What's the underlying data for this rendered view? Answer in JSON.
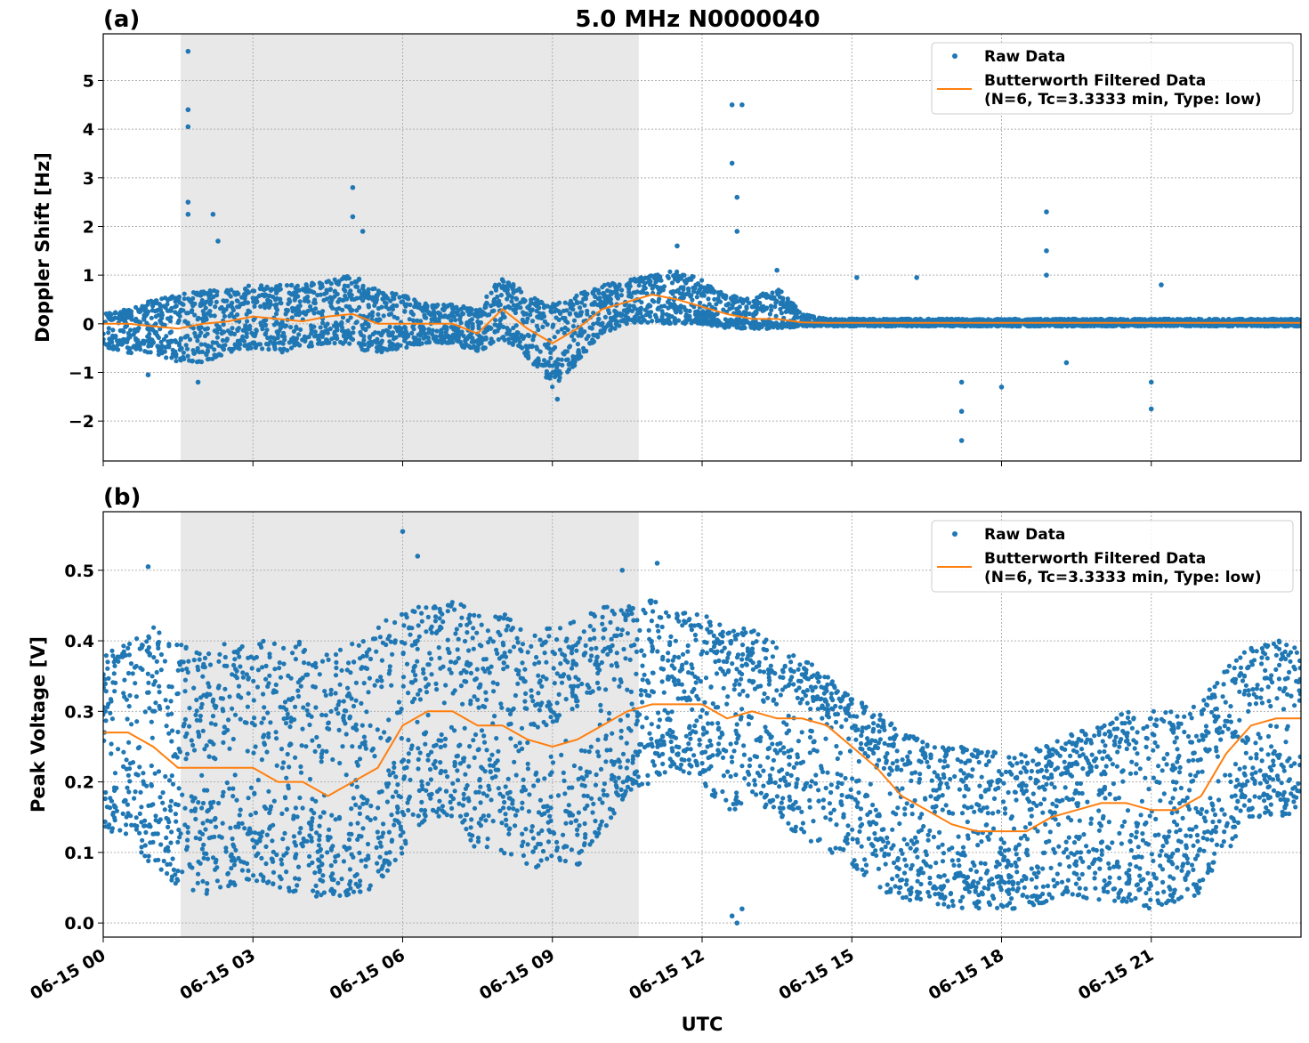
{
  "chart_data": [
    {
      "panel_label": "(a)",
      "title": "5.0 MHz N0000040",
      "type": "scatter",
      "xlabel": "",
      "ylabel": "Doppler Shift [Hz]",
      "xlim_hours": [
        0,
        24
      ],
      "ylim": [
        -2.82,
        5.96
      ],
      "yticks": [
        "−2",
        "−1",
        "0",
        "1",
        "2",
        "3",
        "4",
        "5"
      ],
      "ytick_values": [
        -2,
        -1,
        0,
        1,
        2,
        3,
        4,
        5
      ],
      "grid": true,
      "shaded_region_utc": [
        "01:33",
        "10:44"
      ],
      "shaded_region_hours": [
        1.55,
        10.73
      ],
      "legend": {
        "placement": "top-right",
        "entries": [
          "Raw Data",
          "Butterworth Filtered Data",
          "(N=6, Tc=3.3333 min, Type: low)"
        ]
      },
      "colors": {
        "raw": "#1f77b4",
        "filtered": "#ff7f0e",
        "shade": "#e8e8e8"
      },
      "bins_hours": [
        0,
        0.5,
        1,
        1.5,
        2,
        2.5,
        3,
        3.5,
        4,
        4.5,
        5,
        5.5,
        6,
        6.5,
        7,
        7.5,
        8,
        8.5,
        9,
        9.5,
        10,
        10.5,
        11,
        11.5,
        12,
        12.5,
        13,
        13.5,
        14,
        14.5,
        15,
        15.5,
        16,
        16.5,
        17,
        17.5,
        18,
        18.5,
        19,
        19.5,
        20,
        20.5,
        21,
        21.5,
        22,
        22.5,
        23,
        23.5,
        24
      ],
      "filtered": [
        0,
        0,
        -0.05,
        -0.1,
        0,
        0.05,
        0.15,
        0.1,
        0.05,
        0.15,
        0.2,
        0,
        0,
        0,
        0,
        -0.2,
        0.3,
        -0.1,
        -0.4,
        -0.1,
        0.3,
        0.45,
        0.6,
        0.5,
        0.35,
        0.2,
        0.1,
        0.1,
        0.03,
        0.02,
        0.02,
        0.02,
        0.02,
        0.02,
        0.02,
        0.02,
        0.02,
        0.02,
        0.02,
        0.02,
        0.02,
        0.02,
        0.02,
        0.02,
        0.02,
        0.02,
        0.02,
        0.02,
        0.02
      ],
      "raw_low": [
        -0.5,
        -0.6,
        -0.6,
        -0.8,
        -0.8,
        -0.6,
        -0.5,
        -0.6,
        -0.5,
        -0.4,
        -0.5,
        -0.6,
        -0.5,
        -0.4,
        -0.4,
        -0.6,
        -0.3,
        -0.7,
        -1.3,
        -0.8,
        -0.2,
        0,
        0,
        0,
        0,
        -0.1,
        -0.1,
        -0.1,
        -0.05,
        -0.05,
        -0.05,
        -0.05,
        -0.05,
        -0.05,
        -0.05,
        -0.05,
        -0.05,
        -0.05,
        -0.05,
        -0.05,
        -0.05,
        -0.05,
        -0.05,
        -0.05,
        -0.05,
        -0.05,
        -0.05,
        -0.05,
        -0.05
      ],
      "raw_high": [
        0.2,
        0.3,
        0.5,
        0.6,
        0.7,
        0.7,
        0.8,
        0.8,
        0.8,
        0.9,
        1.0,
        0.7,
        0.6,
        0.4,
        0.4,
        0.3,
        1.0,
        0.6,
        0.4,
        0.6,
        0.8,
        0.9,
        1.0,
        1.1,
        0.9,
        0.6,
        0.5,
        0.8,
        0.2,
        0.1,
        0.1,
        0.1,
        0.1,
        0.1,
        0.1,
        0.1,
        0.1,
        0.1,
        0.1,
        0.1,
        0.1,
        0.1,
        0.1,
        0.1,
        0.1,
        0.1,
        0.1,
        0.1,
        0.1
      ],
      "raw_outliers": [
        [
          1.7,
          5.6
        ],
        [
          1.7,
          4.4
        ],
        [
          1.7,
          4.05
        ],
        [
          1.7,
          2.5
        ],
        [
          1.7,
          2.25
        ],
        [
          2.2,
          2.25
        ],
        [
          2.3,
          1.7
        ],
        [
          5.0,
          2.8
        ],
        [
          5.0,
          2.2
        ],
        [
          5.2,
          1.9
        ],
        [
          12.6,
          4.5
        ],
        [
          12.8,
          4.5
        ],
        [
          12.6,
          3.3
        ],
        [
          12.7,
          2.6
        ],
        [
          12.7,
          1.9
        ],
        [
          17.2,
          -2.4
        ],
        [
          17.2,
          -1.8
        ],
        [
          17.2,
          -1.2
        ],
        [
          18.9,
          2.3
        ],
        [
          18.9,
          1.5
        ],
        [
          18.9,
          1.0
        ],
        [
          21.0,
          -1.75
        ],
        [
          21.0,
          -1.2
        ],
        [
          9.1,
          -1.55
        ],
        [
          19.3,
          -0.8
        ],
        [
          18.0,
          -1.3
        ],
        [
          16.3,
          0.95
        ],
        [
          15.1,
          0.95
        ],
        [
          1.9,
          -1.2
        ],
        [
          0.9,
          -1.05
        ],
        [
          21.2,
          0.8
        ],
        [
          13.5,
          1.1
        ],
        [
          11.5,
          1.6
        ]
      ]
    },
    {
      "panel_label": "(b)",
      "type": "scatter",
      "xlabel": "UTC",
      "ylabel": "Peak Voltage [V]",
      "xlim_hours": [
        0,
        24
      ],
      "ylim": [
        -0.02,
        0.583
      ],
      "yticks": [
        "0.0",
        "0.1",
        "0.2",
        "0.3",
        "0.4",
        "0.5"
      ],
      "ytick_values": [
        0,
        0.1,
        0.2,
        0.3,
        0.4,
        0.5
      ],
      "xticks": [
        "06-15 00",
        "06-15 03",
        "06-15 06",
        "06-15 09",
        "06-15 12",
        "06-15 15",
        "06-15 18",
        "06-15 21"
      ],
      "xtick_hours": [
        0,
        3,
        6,
        9,
        12,
        15,
        18,
        21
      ],
      "grid": true,
      "shaded_region_utc": [
        "01:33",
        "10:44"
      ],
      "shaded_region_hours": [
        1.55,
        10.73
      ],
      "legend": {
        "placement": "top-right",
        "entries": [
          "Raw Data",
          "Butterworth Filtered Data",
          "(N=6, Tc=3.3333 min, Type: low)"
        ]
      },
      "colors": {
        "raw": "#1f77b4",
        "filtered": "#ff7f0e",
        "shade": "#e8e8e8"
      },
      "bins_hours": [
        0,
        0.5,
        1,
        1.5,
        2,
        2.5,
        3,
        3.5,
        4,
        4.5,
        5,
        5.5,
        6,
        6.5,
        7,
        7.5,
        8,
        8.5,
        9,
        9.5,
        10,
        10.5,
        11,
        11.5,
        12,
        12.5,
        13,
        13.5,
        14,
        14.5,
        15,
        15.5,
        16,
        16.5,
        17,
        17.5,
        18,
        18.5,
        19,
        19.5,
        20,
        20.5,
        21,
        21.5,
        22,
        22.5,
        23,
        23.5,
        24
      ],
      "filtered": [
        0.27,
        0.27,
        0.25,
        0.22,
        0.22,
        0.22,
        0.22,
        0.2,
        0.2,
        0.18,
        0.2,
        0.22,
        0.28,
        0.3,
        0.3,
        0.28,
        0.28,
        0.26,
        0.25,
        0.26,
        0.28,
        0.3,
        0.31,
        0.31,
        0.31,
        0.29,
        0.3,
        0.29,
        0.29,
        0.28,
        0.25,
        0.22,
        0.18,
        0.16,
        0.14,
        0.13,
        0.13,
        0.13,
        0.15,
        0.16,
        0.17,
        0.17,
        0.16,
        0.16,
        0.18,
        0.24,
        0.28,
        0.29,
        0.29
      ],
      "raw_low": [
        0.13,
        0.12,
        0.08,
        0.05,
        0.04,
        0.05,
        0.06,
        0.05,
        0.04,
        0.03,
        0.04,
        0.05,
        0.1,
        0.15,
        0.15,
        0.1,
        0.1,
        0.08,
        0.07,
        0.08,
        0.13,
        0.18,
        0.2,
        0.22,
        0.2,
        0.15,
        0.18,
        0.15,
        0.12,
        0.1,
        0.08,
        0.05,
        0.03,
        0.03,
        0.02,
        0.02,
        0.02,
        0.02,
        0.03,
        0.03,
        0.03,
        0.03,
        0.02,
        0.03,
        0.04,
        0.1,
        0.15,
        0.15,
        0.15
      ],
      "raw_high": [
        0.38,
        0.4,
        0.42,
        0.4,
        0.38,
        0.4,
        0.4,
        0.4,
        0.4,
        0.38,
        0.4,
        0.42,
        0.45,
        0.45,
        0.46,
        0.44,
        0.44,
        0.42,
        0.42,
        0.43,
        0.45,
        0.45,
        0.46,
        0.44,
        0.44,
        0.42,
        0.42,
        0.4,
        0.38,
        0.35,
        0.32,
        0.3,
        0.28,
        0.26,
        0.25,
        0.25,
        0.24,
        0.24,
        0.26,
        0.27,
        0.28,
        0.3,
        0.3,
        0.3,
        0.32,
        0.36,
        0.4,
        0.4,
        0.4
      ],
      "raw_outliers": [
        [
          12.6,
          0.01
        ],
        [
          12.7,
          0.0
        ],
        [
          12.8,
          0.02
        ],
        [
          6.0,
          0.555
        ],
        [
          6.3,
          0.52
        ],
        [
          0.9,
          0.505
        ],
        [
          11.1,
          0.51
        ],
        [
          10.4,
          0.5
        ]
      ]
    }
  ]
}
